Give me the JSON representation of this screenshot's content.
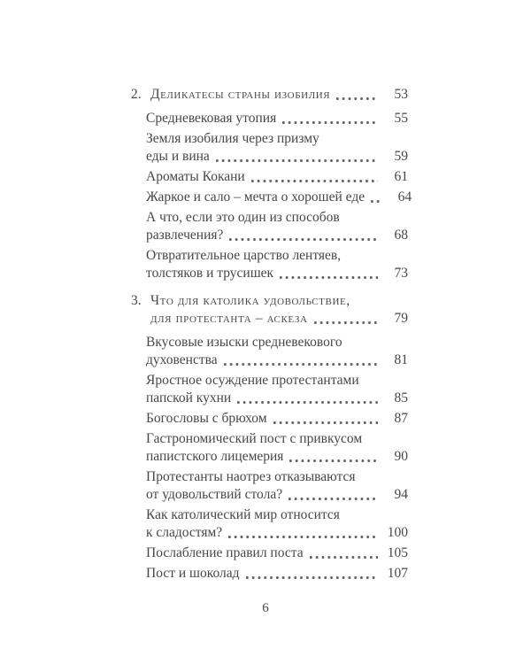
{
  "colors": {
    "text_color": "#474747",
    "leader_dot_color": "#5f5f5f",
    "page_background": "#ffffff"
  },
  "page": {
    "footer_page_number": "6"
  },
  "toc": {
    "items": [
      {
        "kind": "chapter",
        "num": "2.",
        "lines": [
          "Деликатесы страны изобилия"
        ],
        "page": "53"
      },
      {
        "kind": "sub",
        "lines": [
          "Средневековая утопия"
        ],
        "page": "55"
      },
      {
        "kind": "sub",
        "lines": [
          "Земля изобилия через призму",
          "еды и вина"
        ],
        "page": "59"
      },
      {
        "kind": "sub",
        "lines": [
          "Ароматы Кокани"
        ],
        "page": "61"
      },
      {
        "kind": "sub",
        "lines": [
          "Жаркое и сало – мечта о хорошей еде"
        ],
        "page": "64"
      },
      {
        "kind": "sub",
        "lines": [
          "А что, если это один из способов",
          "развлечения?"
        ],
        "page": "68"
      },
      {
        "kind": "sub",
        "lines": [
          "Отвратительное царство лентяев,",
          "толстяков и трусишек"
        ],
        "page": "73"
      },
      {
        "kind": "chapter",
        "num": "3.",
        "lines": [
          "Что для католика удовольствие,",
          "для протестанта – аскеза"
        ],
        "page": "79"
      },
      {
        "kind": "sub",
        "lines": [
          "Вкусовые изыски средневекового",
          "духовенства"
        ],
        "page": "81"
      },
      {
        "kind": "sub",
        "lines": [
          "Яростное осуждение протестантами",
          "папской кухни"
        ],
        "page": "85"
      },
      {
        "kind": "sub",
        "lines": [
          "Богословы с брюхом"
        ],
        "page": "87"
      },
      {
        "kind": "sub",
        "lines": [
          "Гастрономический пост с привкусом",
          "папистского лицемерия"
        ],
        "page": "90"
      },
      {
        "kind": "sub",
        "lines": [
          "Протестанты наотрез отказываются",
          "от удовольствий стола?"
        ],
        "page": "94"
      },
      {
        "kind": "sub",
        "lines": [
          "Как католический мир относится",
          "к сладостям?"
        ],
        "page": "100"
      },
      {
        "kind": "sub",
        "lines": [
          "Послабление правил поста"
        ],
        "page": "105"
      },
      {
        "kind": "sub",
        "lines": [
          "Пост и шоколад"
        ],
        "page": "107"
      }
    ]
  }
}
